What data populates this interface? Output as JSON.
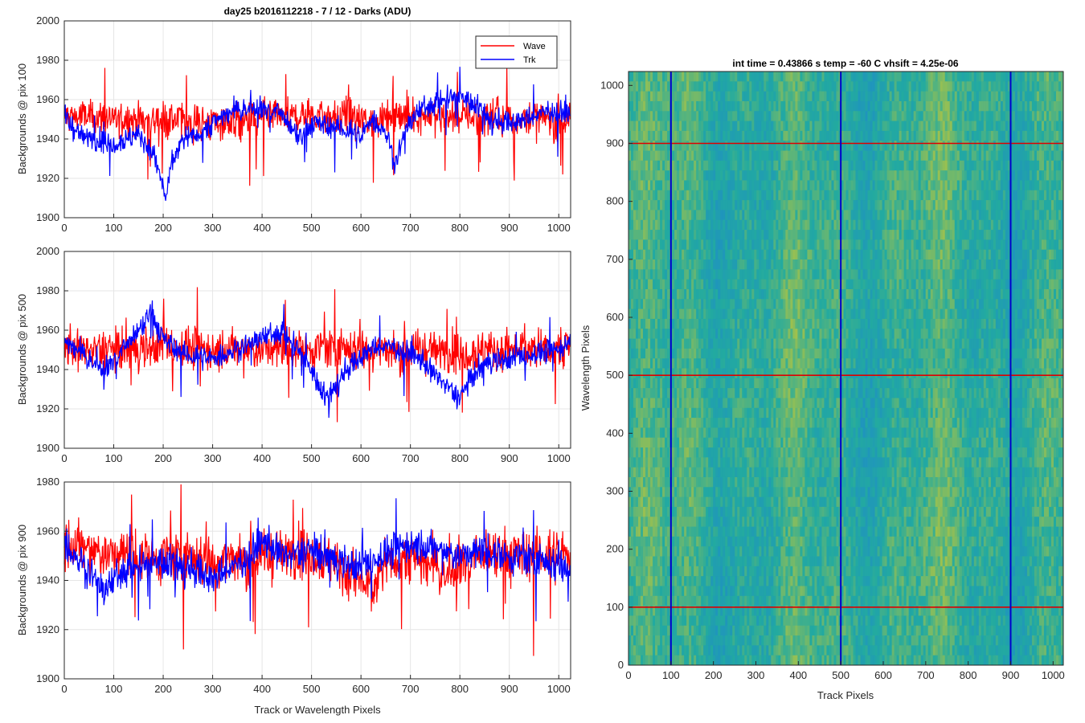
{
  "chart_data": [
    {
      "type": "line",
      "title": "day25 b2016112218 - 7 / 12 - Darks (ADU)",
      "xlabel": "",
      "ylabel": "Backgrounds @ pix 100",
      "xlim": [
        0,
        1024
      ],
      "ylim": [
        1900,
        2000
      ],
      "xticks": [
        "0",
        "100",
        "200",
        "300",
        "400",
        "500",
        "600",
        "700",
        "800",
        "900",
        "1000"
      ],
      "yticks": [
        "1900",
        "1920",
        "1940",
        "1960",
        "1980",
        "2000"
      ],
      "grid": true,
      "legend_placement": "top-right",
      "series": [
        {
          "name": "Wave",
          "color": "#ff0000",
          "mean": 1950,
          "noise": 8,
          "anchors": [
            [
              0,
              1952
            ],
            [
              100,
              1950
            ],
            [
              200,
              1950
            ],
            [
              300,
              1948
            ],
            [
              400,
              1950
            ],
            [
              500,
              1952
            ],
            [
              600,
              1949
            ],
            [
              700,
              1952
            ],
            [
              800,
              1952
            ],
            [
              900,
              1950
            ],
            [
              1023,
              1950
            ]
          ]
        },
        {
          "name": "Trk",
          "color": "#0000ff",
          "mean": 1948,
          "noise": 5,
          "anchors": [
            [
              0,
              1952
            ],
            [
              30,
              1942
            ],
            [
              60,
              1940
            ],
            [
              100,
              1938
            ],
            [
              150,
              1942
            ],
            [
              175,
              1935
            ],
            [
              190,
              1925
            ],
            [
              205,
              1910
            ],
            [
              220,
              1930
            ],
            [
              240,
              1940
            ],
            [
              280,
              1944
            ],
            [
              320,
              1952
            ],
            [
              360,
              1955
            ],
            [
              400,
              1956
            ],
            [
              440,
              1952
            ],
            [
              460,
              1944
            ],
            [
              480,
              1940
            ],
            [
              500,
              1948
            ],
            [
              540,
              1946
            ],
            [
              580,
              1944
            ],
            [
              600,
              1940
            ],
            [
              620,
              1950
            ],
            [
              650,
              1944
            ],
            [
              660,
              1935
            ],
            [
              670,
              1928
            ],
            [
              690,
              1945
            ],
            [
              720,
              1955
            ],
            [
              760,
              1960
            ],
            [
              800,
              1962
            ],
            [
              830,
              1958
            ],
            [
              860,
              1950
            ],
            [
              900,
              1948
            ],
            [
              940,
              1950
            ],
            [
              980,
              1955
            ],
            [
              1023,
              1952
            ]
          ]
        }
      ]
    },
    {
      "type": "line",
      "title": "",
      "xlabel": "",
      "ylabel": "Backgrounds @ pix 500",
      "xlim": [
        0,
        1024
      ],
      "ylim": [
        1900,
        2000
      ],
      "xticks": [
        "0",
        "100",
        "200",
        "300",
        "400",
        "500",
        "600",
        "700",
        "800",
        "900",
        "1000"
      ],
      "yticks": [
        "1900",
        "1920",
        "1940",
        "1960",
        "1980",
        "2000"
      ],
      "grid": true,
      "series": [
        {
          "name": "Wave",
          "color": "#ff0000",
          "mean": 1950,
          "noise": 9,
          "anchors": [
            [
              0,
              1950
            ],
            [
              100,
              1950
            ],
            [
              200,
              1952
            ],
            [
              300,
              1950
            ],
            [
              400,
              1950
            ],
            [
              500,
              1951
            ],
            [
              600,
              1950
            ],
            [
              700,
              1950
            ],
            [
              800,
              1949
            ],
            [
              900,
              1950
            ],
            [
              1023,
              1952
            ]
          ]
        },
        {
          "name": "Trk",
          "color": "#0000ff",
          "mean": 1948,
          "noise": 5,
          "anchors": [
            [
              0,
              1955
            ],
            [
              50,
              1945
            ],
            [
              80,
              1940
            ],
            [
              120,
              1950
            ],
            [
              160,
              1962
            ],
            [
              175,
              1970
            ],
            [
              200,
              1955
            ],
            [
              240,
              1948
            ],
            [
              300,
              1945
            ],
            [
              360,
              1952
            ],
            [
              420,
              1958
            ],
            [
              440,
              1960
            ],
            [
              480,
              1948
            ],
            [
              510,
              1935
            ],
            [
              530,
              1925
            ],
            [
              570,
              1940
            ],
            [
              620,
              1950
            ],
            [
              660,
              1952
            ],
            [
              700,
              1948
            ],
            [
              740,
              1940
            ],
            [
              780,
              1930
            ],
            [
              800,
              1925
            ],
            [
              820,
              1935
            ],
            [
              860,
              1945
            ],
            [
              900,
              1945
            ],
            [
              950,
              1948
            ],
            [
              1000,
              1950
            ],
            [
              1023,
              1955
            ]
          ]
        }
      ]
    },
    {
      "type": "line",
      "title": "",
      "xlabel": "Track or Wavelength Pixels",
      "ylabel": "Backgrounds @ pix 900",
      "xlim": [
        0,
        1024
      ],
      "ylim": [
        1900,
        1980
      ],
      "xticks": [
        "0",
        "100",
        "200",
        "300",
        "400",
        "500",
        "600",
        "700",
        "800",
        "900",
        "1000"
      ],
      "yticks": [
        "1900",
        "1920",
        "1940",
        "1960",
        "1980"
      ],
      "grid": true,
      "series": [
        {
          "name": "Wave",
          "color": "#ff0000",
          "mean": 1950,
          "noise": 9,
          "anchors": [
            [
              0,
              1955
            ],
            [
              100,
              1950
            ],
            [
              200,
              1950
            ],
            [
              300,
              1948
            ],
            [
              400,
              1950
            ],
            [
              500,
              1952
            ],
            [
              600,
              1940
            ],
            [
              620,
              1935
            ],
            [
              650,
              1948
            ],
            [
              700,
              1950
            ],
            [
              780,
              1942
            ],
            [
              800,
              1948
            ],
            [
              900,
              1950
            ],
            [
              1023,
              1950
            ]
          ]
        },
        {
          "name": "Trk",
          "color": "#0000ff",
          "mean": 1948,
          "noise": 6,
          "anchors": [
            [
              0,
              1955
            ],
            [
              60,
              1942
            ],
            [
              80,
              1935
            ],
            [
              120,
              1945
            ],
            [
              200,
              1948
            ],
            [
              260,
              1945
            ],
            [
              300,
              1940
            ],
            [
              360,
              1948
            ],
            [
              400,
              1955
            ],
            [
              450,
              1950
            ],
            [
              500,
              1952
            ],
            [
              560,
              1948
            ],
            [
              600,
              1945
            ],
            [
              640,
              1950
            ],
            [
              700,
              1955
            ],
            [
              760,
              1952
            ],
            [
              800,
              1950
            ],
            [
              860,
              1952
            ],
            [
              900,
              1950
            ],
            [
              960,
              1948
            ],
            [
              1023,
              1945
            ]
          ]
        }
      ]
    },
    {
      "type": "heatmap",
      "title": "int time = 0.43866 s   temp = -60 C   vhsift = 4.25e-06",
      "xlabel": "Track Pixels",
      "ylabel": "Wavelength Pixels",
      "xlim": [
        0,
        1024
      ],
      "ylim": [
        0,
        1024
      ],
      "xticks": [
        "0",
        "100",
        "200",
        "300",
        "400",
        "500",
        "600",
        "700",
        "800",
        "900",
        "1000"
      ],
      "yticks": [
        "0",
        "100",
        "200",
        "300",
        "400",
        "500",
        "600",
        "700",
        "800",
        "900",
        "1000"
      ],
      "colormap": "parula",
      "vertical_markers": [
        100,
        500,
        900
      ],
      "vertical_marker_color": "#0000cc",
      "horizontal_markers": [
        100,
        500,
        900
      ],
      "horizontal_marker_color": "#dd0000"
    }
  ]
}
